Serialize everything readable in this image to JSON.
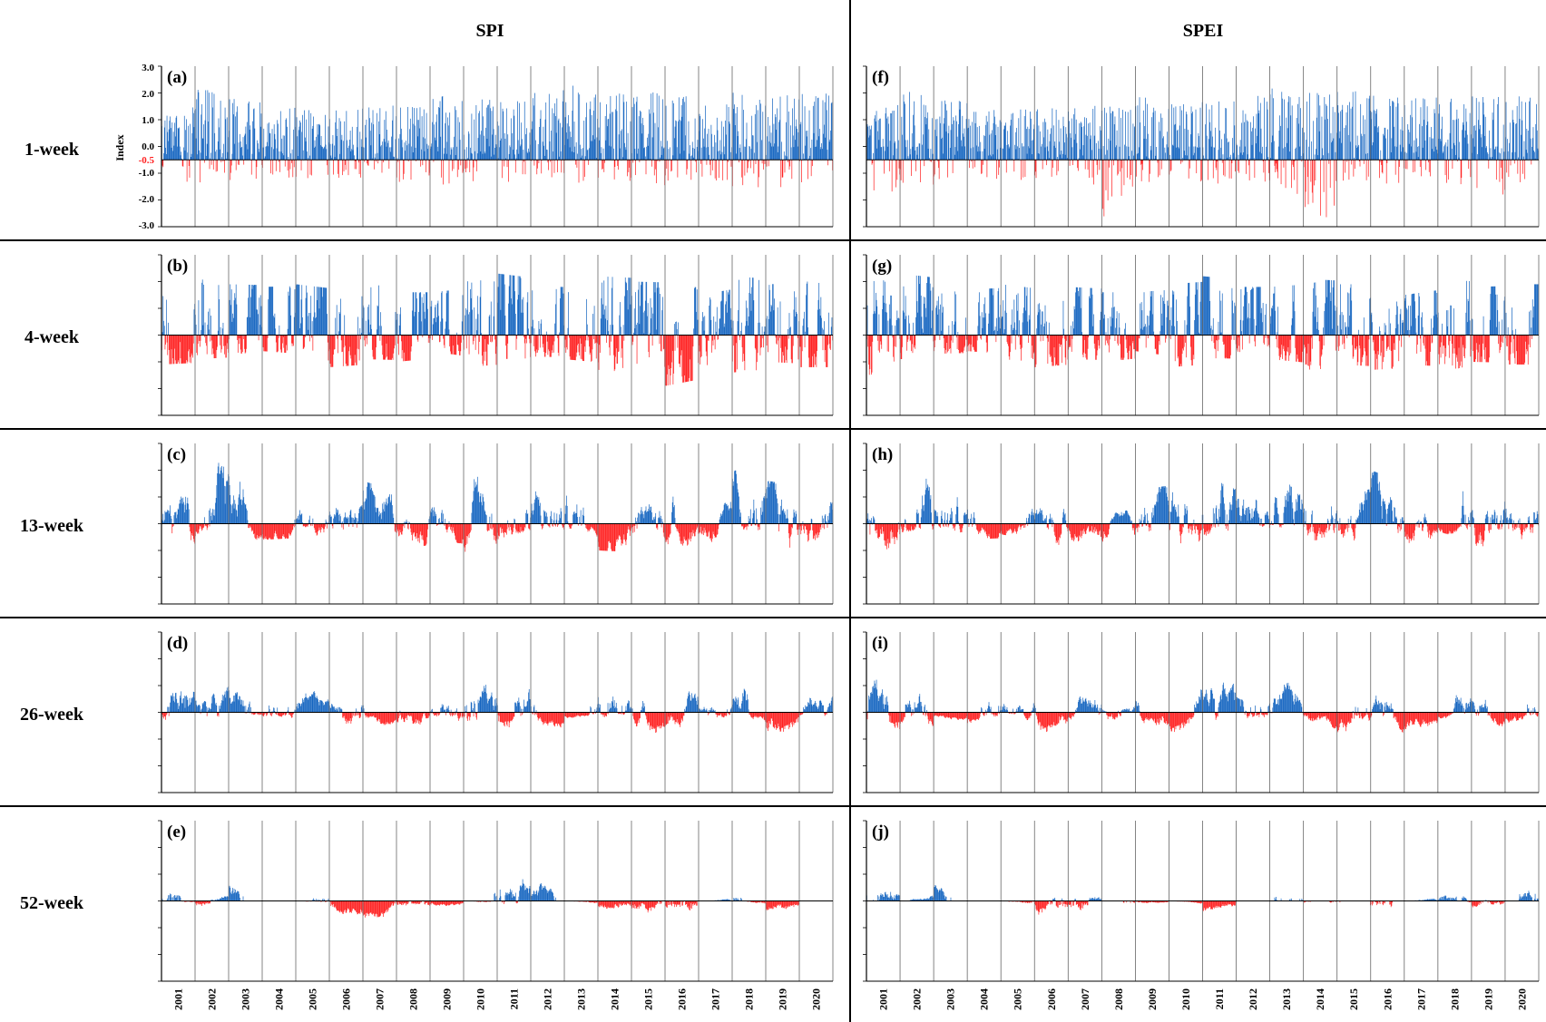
{
  "figure": {
    "column_titles": [
      "SPI",
      "SPEI"
    ],
    "row_labels": [
      "1-week",
      "4-week",
      "13-week",
      "26-week",
      "52-week"
    ],
    "colors": {
      "positive": "#1565c0",
      "negative": "#ff2020",
      "axis": "#000000",
      "grid": "#555555"
    }
  },
  "chart_data": {
    "type": "bar",
    "x_categories": [
      "2001",
      "2002",
      "2003",
      "2004",
      "2005",
      "2006",
      "2007",
      "2008",
      "2009",
      "2010",
      "2011",
      "2012",
      "2013",
      "2014",
      "2015",
      "2016",
      "2017",
      "2018",
      "2019",
      "2020"
    ],
    "ylabel": "Index",
    "ylim": [
      -3.0,
      3.0
    ],
    "y_ticks": [
      "3.0",
      "2.0",
      "1.0",
      "0.0",
      "-1.0",
      "-2.0",
      "-3.0"
    ],
    "threshold": {
      "value": -0.5,
      "label": "-0.5",
      "color": "#ff2020"
    },
    "grid": "vertical year lines",
    "panels": [
      {
        "label": "(a)",
        "index": "SPI",
        "scale": "1-week",
        "envelope": {
          "pos": [
            1.2,
            2.3,
            1.8,
            1.5,
            1.4,
            1.4,
            1.6,
            1.5,
            1.9,
            1.8,
            1.7,
            2.1,
            2.3,
            2.0,
            2.1,
            1.9,
            1.8,
            2.1,
            1.9,
            2.0
          ],
          "neg": [
            -1.3,
            -1.4,
            -1.3,
            -1.2,
            -1.3,
            -1.2,
            -1.3,
            -1.4,
            -1.5,
            -1.3,
            -1.4,
            -1.3,
            -1.4,
            -1.2,
            -1.5,
            -1.4,
            -1.3,
            -1.5,
            -1.6,
            -1.4
          ]
        }
      },
      {
        "label": "(b)",
        "index": "SPI",
        "scale": "4-week",
        "envelope": {
          "pos": [
            2.0,
            2.2,
            1.9,
            1.8,
            1.9,
            1.4,
            1.9,
            1.6,
            1.6,
            2.0,
            2.3,
            1.8,
            1.8,
            2.2,
            2.0,
            1.9,
            1.5,
            2.2,
            1.9,
            2.0
          ],
          "neg": [
            -1.1,
            -0.9,
            -0.7,
            -0.6,
            -0.9,
            -1.2,
            -0.9,
            -1.0,
            -0.6,
            -1.2,
            -0.9,
            -0.8,
            -0.9,
            -1.3,
            -1.6,
            -1.9,
            -1.1,
            -1.4,
            -1.0,
            -1.2
          ]
        }
      },
      {
        "label": "(c)",
        "index": "SPI",
        "scale": "13-week",
        "envelope": {
          "pos": [
            1.1,
            2.4,
            1.8,
            1.2,
            1.0,
            0.9,
            1.6,
            0.3,
            1.2,
            2.0,
            2.4,
            1.6,
            1.7,
            2.3,
            1.0,
            2.1,
            0.4,
            2.0,
            1.6,
            1.2
          ],
          "neg": [
            -1.3,
            -0.6,
            -0.6,
            -0.6,
            -0.4,
            -1.0,
            -0.8,
            -0.9,
            -0.6,
            -1.1,
            -0.8,
            -0.6,
            -0.3,
            -1.0,
            -1.2,
            -1.0,
            -1.0,
            -0.3,
            -1.5,
            -1.1
          ]
        }
      },
      {
        "label": "(d)",
        "index": "SPI",
        "scale": "26-week",
        "envelope": {
          "pos": [
            2.2,
            1.8,
            1.6,
            1.3,
            0.9,
            0.7,
            1.3,
            0.3,
            0.9,
            1.8,
            2.3,
            1.6,
            1.4,
            1.8,
            1.0,
            1.9,
            0.4,
            1.8,
            1.3,
            1.2
          ],
          "neg": [
            -0.8,
            -0.9,
            -0.2,
            -0.6,
            -0.5,
            -1.2,
            -0.5,
            -1.0,
            -0.7,
            -1.1,
            -1.1,
            -0.7,
            -0.2,
            -0.6,
            -1.2,
            -1.1,
            -0.8,
            -0.3,
            -1.2,
            -0.5
          ]
        }
      },
      {
        "label": "(e)",
        "index": "SPI",
        "scale": "52-week",
        "envelope": {
          "pos": [
            1.7,
            0.0,
            1.5,
            0.8,
            0.6,
            0.7,
            0.6,
            0.0,
            0.1,
            1.6,
            2.2,
            1.5,
            0.9,
            0.0,
            0.0,
            0.0,
            0.0,
            0.8,
            0.0,
            1.2
          ],
          "neg": [
            0.0,
            -0.7,
            0.0,
            0.0,
            0.0,
            -0.9,
            -1.1,
            -0.8,
            -0.4,
            0.0,
            -0.7,
            0.0,
            0.0,
            -0.6,
            -0.9,
            -1.1,
            -1.4,
            0.0,
            -0.8,
            0.0
          ]
        }
      },
      {
        "label": "(f)",
        "index": "SPEI",
        "scale": "1-week",
        "envelope": {
          "pos": [
            1.3,
            2.3,
            1.8,
            1.5,
            1.4,
            1.4,
            1.6,
            1.5,
            1.9,
            1.8,
            1.7,
            2.0,
            2.2,
            2.0,
            2.1,
            1.9,
            1.8,
            2.0,
            1.9,
            2.0
          ],
          "neg": [
            -1.9,
            -1.5,
            -1.3,
            -1.2,
            -1.3,
            -1.2,
            -1.3,
            -2.7,
            -1.5,
            -1.3,
            -1.4,
            -1.3,
            -1.4,
            -3.0,
            -1.5,
            -1.4,
            -1.3,
            -1.5,
            -2.0,
            -1.4
          ]
        }
      },
      {
        "label": "(g)",
        "index": "SPEI",
        "scale": "4-week",
        "envelope": {
          "pos": [
            2.0,
            2.3,
            1.8,
            1.7,
            1.9,
            1.4,
            1.8,
            1.6,
            1.6,
            1.9,
            2.2,
            1.8,
            1.8,
            2.1,
            1.9,
            1.9,
            1.5,
            2.1,
            1.8,
            1.9
          ],
          "neg": [
            -1.5,
            -0.9,
            -0.7,
            -0.6,
            -0.9,
            -1.2,
            -0.9,
            -1.0,
            -0.6,
            -1.2,
            -0.9,
            -0.8,
            -0.9,
            -1.3,
            -1.1,
            -1.3,
            -1.1,
            -1.3,
            -1.0,
            -1.1
          ]
        }
      },
      {
        "label": "(h)",
        "index": "SPEI",
        "scale": "13-week",
        "envelope": {
          "pos": [
            1.1,
            2.4,
            1.7,
            1.3,
            1.0,
            0.9,
            1.6,
            0.3,
            1.2,
            2.0,
            2.4,
            1.6,
            1.7,
            2.2,
            1.0,
            2.0,
            0.4,
            2.0,
            1.6,
            1.2
          ],
          "neg": [
            -1.3,
            -0.6,
            -0.6,
            -0.6,
            -0.4,
            -1.1,
            -0.8,
            -0.9,
            -0.6,
            -1.2,
            -0.8,
            -0.6,
            -0.3,
            -1.0,
            -1.2,
            -1.0,
            -1.0,
            -0.3,
            -1.4,
            -0.9
          ]
        }
      },
      {
        "label": "(i)",
        "index": "SPEI",
        "scale": "26-week",
        "envelope": {
          "pos": [
            2.2,
            1.7,
            1.5,
            1.3,
            0.9,
            0.8,
            1.3,
            0.3,
            0.9,
            1.7,
            2.4,
            1.6,
            1.4,
            1.8,
            1.0,
            1.8,
            0.4,
            1.8,
            1.3,
            1.2
          ],
          "neg": [
            -1.2,
            -1.2,
            -0.2,
            -0.6,
            -0.5,
            -1.2,
            -0.5,
            -1.0,
            -0.7,
            -1.1,
            -1.1,
            -0.7,
            -0.2,
            -0.6,
            -1.0,
            -1.1,
            -0.8,
            -0.3,
            -0.9,
            -0.5
          ]
        }
      },
      {
        "label": "(j)",
        "index": "SPEI",
        "scale": "52-week",
        "envelope": {
          "pos": [
            1.5,
            0.0,
            1.4,
            0.7,
            0.6,
            0.7,
            0.7,
            0.0,
            0.1,
            1.5,
            2.3,
            1.4,
            0.9,
            0.0,
            0.0,
            0.0,
            0.0,
            0.8,
            0.0,
            1.3
          ],
          "neg": [
            0.0,
            -1.1,
            0.0,
            0.0,
            0.0,
            -1.1,
            -1.2,
            -0.6,
            -0.2,
            0.0,
            -0.7,
            0.0,
            0.0,
            -0.3,
            -0.8,
            -1.0,
            -1.2,
            0.0,
            -0.6,
            0.0
          ]
        }
      }
    ]
  }
}
